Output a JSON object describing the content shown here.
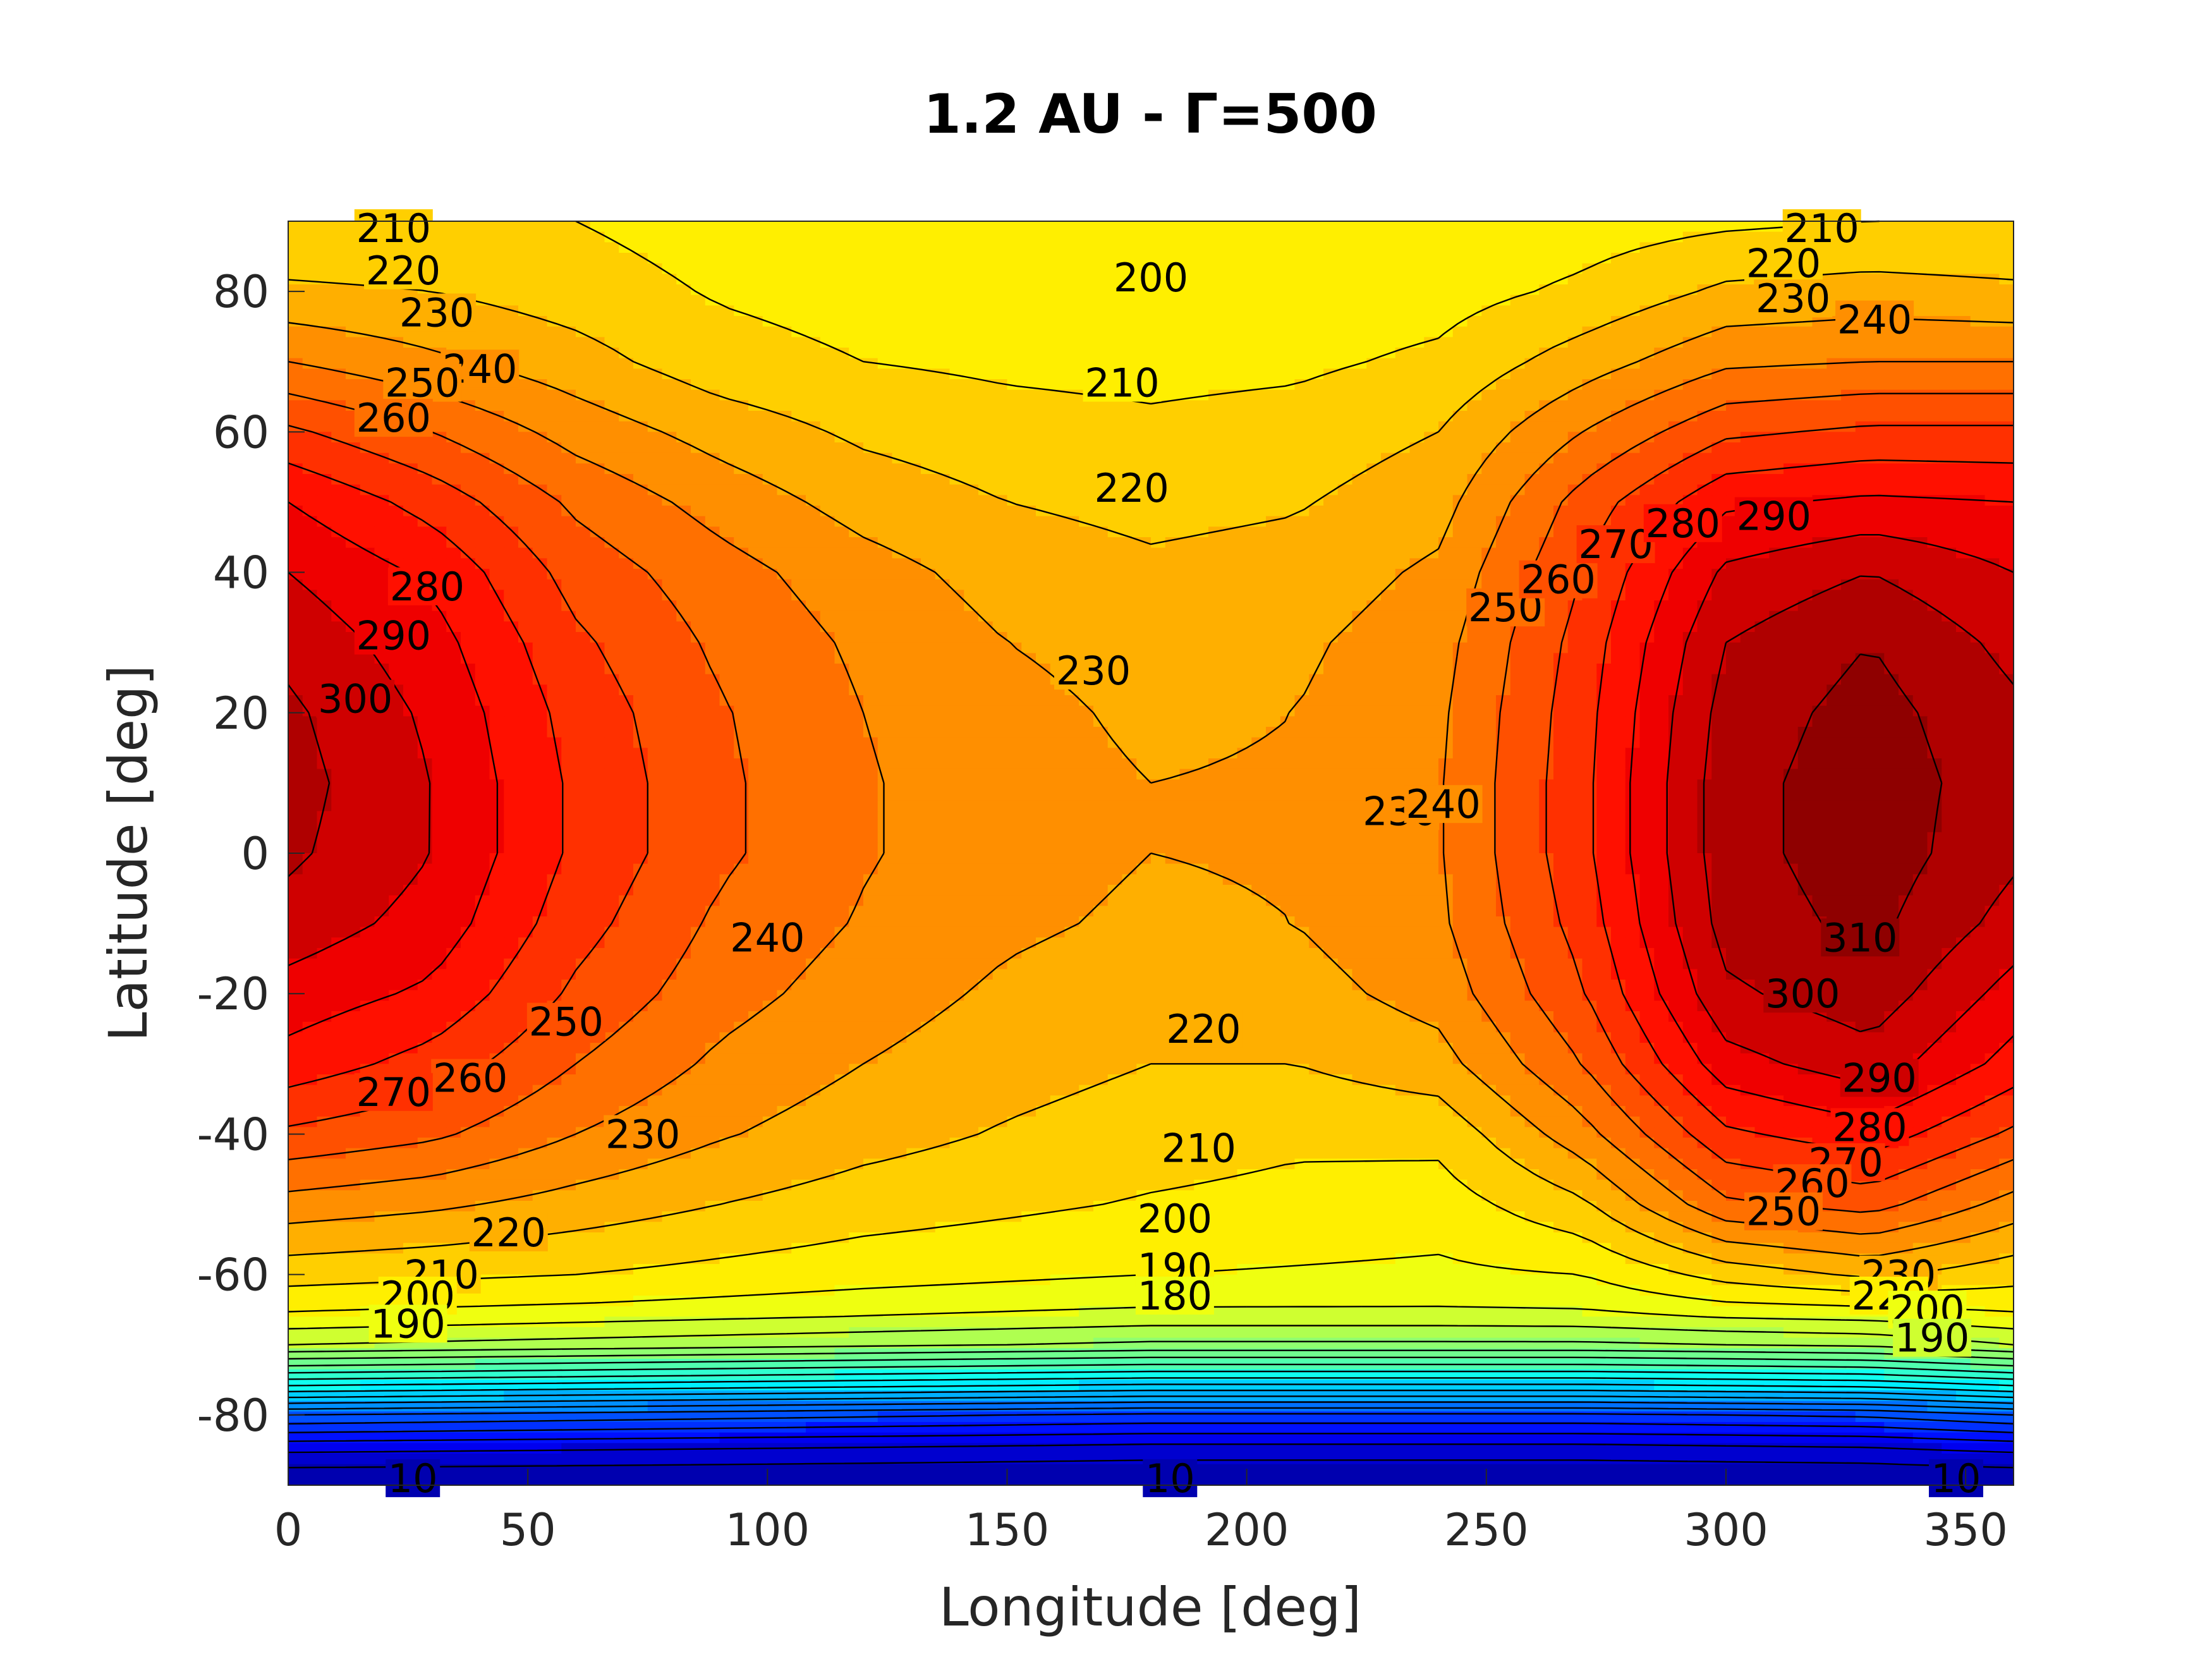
{
  "chart_data": {
    "type": "heatmap",
    "subtype": "filled-contour",
    "title": "1.2 AU - Γ=500",
    "xlabel": "Longitude [deg]",
    "ylabel": "Latitude [deg]",
    "xlim": [
      0,
      360
    ],
    "ylim": [
      -90,
      90
    ],
    "xticks": [
      0,
      50,
      100,
      150,
      200,
      250,
      300,
      350
    ],
    "yticks": [
      -80,
      -60,
      -40,
      -20,
      0,
      20,
      40,
      60,
      80
    ],
    "colormap": "jet",
    "color_range": [
      0,
      320
    ],
    "contour_interval": 10,
    "field_samples": {
      "longitudes": [
        0,
        30,
        60,
        90,
        120,
        150,
        180,
        210,
        240,
        270,
        300,
        330,
        360
      ],
      "latitudes": [
        90,
        80,
        70,
        60,
        50,
        40,
        30,
        20,
        10,
        0,
        -10,
        -20,
        -30,
        -40,
        -50,
        -60,
        -65,
        -70,
        -75,
        -80,
        -85,
        -90
      ],
      "values": [
        [
          210,
          210,
          210,
          205,
          202,
          201,
          200,
          201,
          202,
          205,
          208,
          210,
          210
        ],
        [
          222,
          220,
          215,
          209,
          206,
          204,
          203,
          204,
          206,
          212,
          222,
          224,
          222
        ],
        [
          240,
          232,
          224,
          214,
          210,
          208,
          207,
          208,
          212,
          225,
          238,
          240,
          240
        ],
        [
          262,
          250,
          236,
          226,
          218,
          214,
          212,
          214,
          220,
          240,
          258,
          262,
          262
        ],
        [
          280,
          266,
          248,
          236,
          226,
          220,
          217,
          219,
          226,
          254,
          278,
          282,
          280
        ],
        [
          290,
          278,
          256,
          244,
          234,
          226,
          222,
          224,
          232,
          260,
          292,
          300,
          290
        ],
        [
          297,
          284,
          262,
          248,
          238,
          230,
          226,
          228,
          236,
          264,
          300,
          310,
          297
        ],
        [
          302,
          288,
          266,
          251,
          240,
          233,
          228,
          230,
          238,
          266,
          304,
          314,
          302
        ],
        [
          304,
          290,
          268,
          252,
          241,
          234,
          230,
          231,
          239,
          267,
          306,
          316,
          304
        ],
        [
          302,
          290,
          268,
          252,
          241,
          234,
          230,
          231,
          239,
          267,
          306,
          316,
          302
        ],
        [
          296,
          286,
          264,
          248,
          239,
          232,
          228,
          230,
          238,
          264,
          304,
          313,
          296
        ],
        [
          286,
          278,
          258,
          244,
          235,
          228,
          224,
          226,
          234,
          259,
          298,
          306,
          286
        ],
        [
          276,
          266,
          250,
          238,
          230,
          224,
          220,
          220,
          226,
          250,
          286,
          296,
          276
        ],
        [
          258,
          252,
          240,
          231,
          224,
          219,
          215,
          212,
          213,
          236,
          268,
          276,
          258
        ],
        [
          236,
          232,
          226,
          220,
          215,
          212,
          209,
          207,
          205,
          218,
          248,
          254,
          236
        ],
        [
          214,
          212,
          210,
          207,
          204,
          202,
          200,
          199,
          198,
          200,
          214,
          222,
          214
        ],
        [
          202,
          200,
          198,
          196,
          194,
          192,
          190,
          190,
          190,
          191,
          196,
          198,
          202
        ],
        [
          180,
          178,
          176,
          174,
          172,
          170,
          168,
          168,
          168,
          168,
          170,
          172,
          180
        ],
        [
          130,
          128,
          126,
          124,
          122,
          120,
          118,
          118,
          118,
          118,
          120,
          122,
          130
        ],
        [
          70,
          68,
          66,
          64,
          62,
          60,
          58,
          58,
          58,
          58,
          60,
          62,
          70
        ],
        [
          30,
          29,
          28,
          27,
          26,
          25,
          24,
          24,
          24,
          24,
          25,
          26,
          30
        ],
        [
          10,
          10,
          10,
          10,
          10,
          10,
          10,
          10,
          10,
          10,
          10,
          10,
          10
        ]
      ]
    },
    "annotations": [
      {
        "text": "210",
        "x": 22,
        "y": 89
      },
      {
        "text": "220",
        "x": 24,
        "y": 83
      },
      {
        "text": "230",
        "x": 31,
        "y": 77
      },
      {
        "text": "240",
        "x": 40,
        "y": 69
      },
      {
        "text": "250",
        "x": 28,
        "y": 67
      },
      {
        "text": "260",
        "x": 22,
        "y": 62
      },
      {
        "text": "280",
        "x": 29,
        "y": 38
      },
      {
        "text": "290",
        "x": 22,
        "y": 31
      },
      {
        "text": "300",
        "x": 14,
        "y": 22
      },
      {
        "text": "200",
        "x": 180,
        "y": 82
      },
      {
        "text": "210",
        "x": 174,
        "y": 67
      },
      {
        "text": "220",
        "x": 176,
        "y": 52
      },
      {
        "text": "230",
        "x": 168,
        "y": 26
      },
      {
        "text": "240",
        "x": 100,
        "y": -12
      },
      {
        "text": "250",
        "x": 58,
        "y": -24
      },
      {
        "text": "260",
        "x": 38,
        "y": -32
      },
      {
        "text": "270",
        "x": 22,
        "y": -34
      },
      {
        "text": "230",
        "x": 74,
        "y": -40
      },
      {
        "text": "220",
        "x": 46,
        "y": -54
      },
      {
        "text": "210",
        "x": 32,
        "y": -60
      },
      {
        "text": "200",
        "x": 27,
        "y": -63
      },
      {
        "text": "190",
        "x": 25,
        "y": -67
      },
      {
        "text": "220",
        "x": 191,
        "y": -25
      },
      {
        "text": "210",
        "x": 190,
        "y": -42
      },
      {
        "text": "200",
        "x": 185,
        "y": -52
      },
      {
        "text": "190",
        "x": 185,
        "y": -59
      },
      {
        "text": "180",
        "x": 185,
        "y": -63
      },
      {
        "text": "230",
        "x": 232,
        "y": 6
      },
      {
        "text": "240",
        "x": 241,
        "y": 7
      },
      {
        "text": "250",
        "x": 254,
        "y": 35
      },
      {
        "text": "260",
        "x": 265,
        "y": 39
      },
      {
        "text": "270",
        "x": 277,
        "y": 44
      },
      {
        "text": "280",
        "x": 291,
        "y": 47
      },
      {
        "text": "290",
        "x": 310,
        "y": 48
      },
      {
        "text": "210",
        "x": 320,
        "y": 89
      },
      {
        "text": "220",
        "x": 312,
        "y": 84
      },
      {
        "text": "230",
        "x": 314,
        "y": 79
      },
      {
        "text": "240",
        "x": 331,
        "y": 76
      },
      {
        "text": "310",
        "x": 328,
        "y": -12
      },
      {
        "text": "300",
        "x": 316,
        "y": -20
      },
      {
        "text": "290",
        "x": 332,
        "y": -32
      },
      {
        "text": "280",
        "x": 330,
        "y": -39
      },
      {
        "text": "270",
        "x": 325,
        "y": -44
      },
      {
        "text": "260",
        "x": 318,
        "y": -47
      },
      {
        "text": "250",
        "x": 312,
        "y": -51
      },
      {
        "text": "230",
        "x": 336,
        "y": -60
      },
      {
        "text": "220",
        "x": 334,
        "y": -63
      },
      {
        "text": "200",
        "x": 342,
        "y": -65
      },
      {
        "text": "190",
        "x": 343,
        "y": -69
      },
      {
        "text": "10",
        "x": 26,
        "y": -89
      },
      {
        "text": "10",
        "x": 184,
        "y": -89
      },
      {
        "text": "10",
        "x": 348,
        "y": -89
      }
    ]
  }
}
